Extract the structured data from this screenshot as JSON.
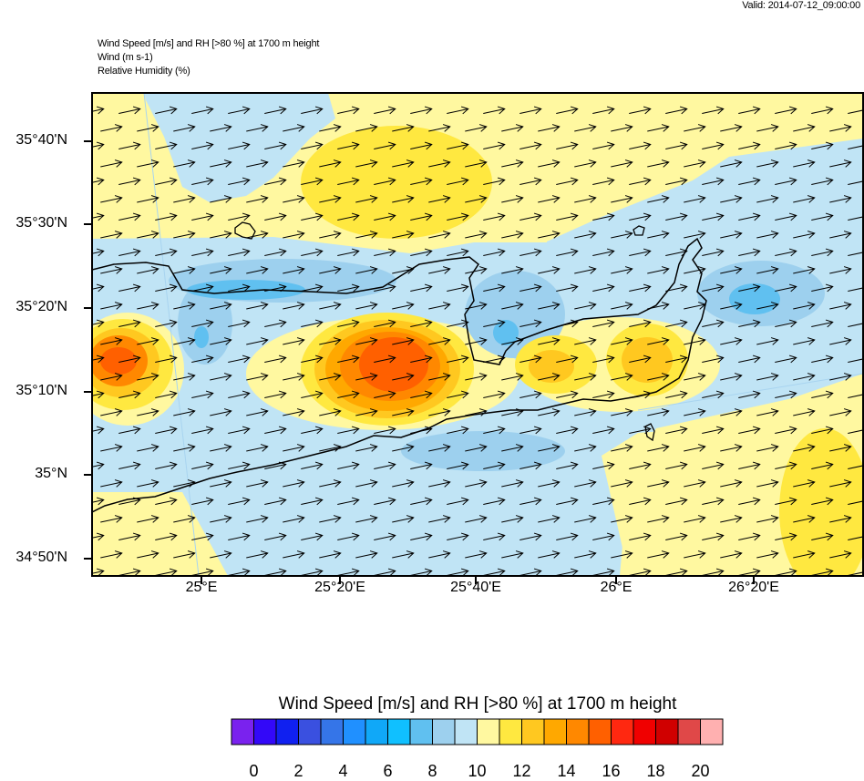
{
  "header": {
    "valid": "Valid: 2014-07-12_09:00:00",
    "title_lines": [
      "Wind Speed [m/s] and RH [>80 %] at 1700 m height",
      "Wind   (m s-1)",
      "Relative Humidity   (%)"
    ]
  },
  "map": {
    "region": "Crete",
    "lat_ticks": [
      "35°40'N",
      "35°30'N",
      "35°20'N",
      "35°10'N",
      "35°N",
      "34°50'N"
    ],
    "lon_ticks": [
      "25°E",
      "25°20'E",
      "25°40'E",
      "26°E",
      "26°20'E"
    ],
    "wind_direction": "west-southwest (arrows pointing east-northeast)",
    "land_border_color": "#000000"
  },
  "colorbar": {
    "title": "Wind Speed [m/s] and RH [>80 %] at 1700 m height",
    "colors": [
      "#7a22ee",
      "#3308f8",
      "#1020f0",
      "#3a50e0",
      "#3575e8",
      "#2090ff",
      "#10a8f8",
      "#10c0ff",
      "#60c0f0",
      "#9dd0ee",
      "#c0e4f5",
      "#fff8a0",
      "#ffe840",
      "#ffc820",
      "#ffa800",
      "#ff8800",
      "#ff6000",
      "#ff2810",
      "#f00000",
      "#d00000",
      "#e04848",
      "#ffb0b0"
    ],
    "labels": [
      "0",
      "2",
      "4",
      "6",
      "8",
      "10",
      "12",
      "14",
      "16",
      "18",
      "20"
    ]
  }
}
